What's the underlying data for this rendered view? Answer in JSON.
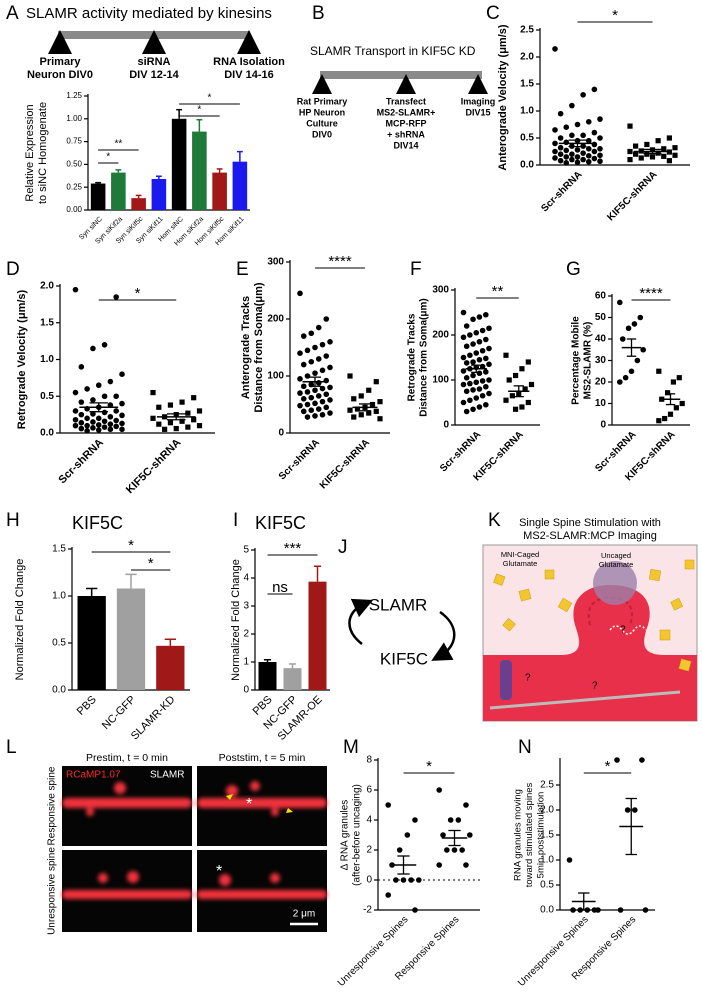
{
  "chart_data": [
    {
      "type": "bar",
      "panel": "A",
      "y_label": [
        "Relative Expression",
        "to siNC Homogenate"
      ],
      "categories": [
        "Syn siNC",
        "Syn siKif2a",
        "Syn siKif5c",
        "Syn siKif11",
        "Hom siNC",
        "Hom siKif2a",
        "Hom siKif5c",
        "Hom siKif11"
      ],
      "values": [
        0.29,
        0.41,
        0.13,
        0.34,
        1.0,
        0.86,
        0.41,
        0.53
      ],
      "errors": [
        0.01,
        0.03,
        0.03,
        0.03,
        0.1,
        0.13,
        0.04,
        0.11
      ],
      "colors": [
        "#000000",
        "#1f7a3a",
        "#a01818",
        "#1a1aee",
        "#000000",
        "#1f7a3a",
        "#a01818",
        "#1a1aee"
      ],
      "ylim": [
        0,
        1.25
      ],
      "yticks": [
        {
          "value": 0,
          "label": "0.00"
        },
        {
          "value": 0.25,
          "label": "0.25"
        },
        {
          "value": 0.5,
          "label": "0.50"
        },
        {
          "value": 0.75,
          "label": "0.75"
        },
        {
          "value": 1,
          "label": "1.00"
        },
        {
          "value": 1.25,
          "label": "1.25"
        }
      ],
      "significance": [
        {
          "label": "*",
          "between": [
            0,
            1
          ]
        },
        {
          "label": "**",
          "between": [
            0,
            2
          ]
        },
        {
          "label": "*",
          "between": [
            4,
            6
          ]
        },
        {
          "label": "*",
          "between": [
            4,
            7
          ]
        }
      ]
    },
    {
      "type": "strip",
      "panel": "C",
      "y_label": [
        "Anterograde Velocity (μm/s)"
      ],
      "categories": [
        "Scr-shRNA",
        "KIF5C-shRNA"
      ],
      "markers": [
        "circle",
        "square"
      ],
      "values": [
        [
          2.15,
          1.4,
          1.3,
          1.1,
          0.95,
          0.85,
          0.8,
          0.75,
          0.7,
          0.65,
          0.6,
          0.55,
          0.55,
          0.5,
          0.5,
          0.45,
          0.45,
          0.42,
          0.4,
          0.38,
          0.35,
          0.35,
          0.32,
          0.3,
          0.3,
          0.28,
          0.27,
          0.25,
          0.25,
          0.22,
          0.2,
          0.2,
          0.18,
          0.17,
          0.15,
          0.15,
          0.13,
          0.12,
          0.1,
          0.1,
          0.08,
          0.07,
          0.06,
          0.05,
          0.04
        ],
        [
          0.72,
          0.5,
          0.45,
          0.38,
          0.35,
          0.32,
          0.3,
          0.28,
          0.26,
          0.25,
          0.24,
          0.22,
          0.2,
          0.2,
          0.18,
          0.16,
          0.15,
          0.13,
          0.1,
          0.08
        ]
      ],
      "means": [
        0.4,
        0.25
      ],
      "sems": [
        0.06,
        0.04
      ],
      "ylim": [
        0,
        2.5
      ],
      "yticks": [
        {
          "value": 0,
          "label": "0.0"
        },
        {
          "value": 0.5,
          "label": "0.5"
        },
        {
          "value": 1,
          "label": "1.0"
        },
        {
          "value": 1.5,
          "label": "1.5"
        },
        {
          "value": 2,
          "label": "2.0"
        },
        {
          "value": 2.5,
          "label": "2.5"
        }
      ],
      "significance": [
        {
          "label": "*",
          "between": [
            0,
            1
          ]
        }
      ]
    },
    {
      "type": "strip",
      "panel": "D",
      "y_label": [
        "Retrograde Velocity (μm/s)"
      ],
      "categories": [
        "Scr-shRNA",
        "KIF5C-shRNA"
      ],
      "markers": [
        "circle",
        "square"
      ],
      "values": [
        [
          1.95,
          1.85,
          1.2,
          1.15,
          0.9,
          0.8,
          0.7,
          0.65,
          0.6,
          0.55,
          0.5,
          0.5,
          0.45,
          0.42,
          0.4,
          0.38,
          0.35,
          0.33,
          0.3,
          0.3,
          0.28,
          0.26,
          0.25,
          0.24,
          0.22,
          0.2,
          0.2,
          0.18,
          0.17,
          0.16,
          0.15,
          0.14,
          0.13,
          0.12,
          0.11,
          0.1,
          0.1,
          0.09,
          0.08,
          0.07,
          0.06,
          0.05,
          0.05,
          0.04,
          0.03
        ],
        [
          0.55,
          0.48,
          0.42,
          0.38,
          0.35,
          0.3,
          0.27,
          0.25,
          0.22,
          0.2,
          0.18,
          0.16,
          0.14,
          0.12,
          0.1,
          0.08,
          0.06,
          0.05
        ]
      ],
      "means": [
        0.35,
        0.22
      ],
      "sems": [
        0.06,
        0.04
      ],
      "ylim": [
        0,
        2
      ],
      "yticks": [
        {
          "value": 0,
          "label": "0.0"
        },
        {
          "value": 0.5,
          "label": "0.5"
        },
        {
          "value": 1,
          "label": "1.0"
        },
        {
          "value": 1.5,
          "label": "1.5"
        },
        {
          "value": 2,
          "label": "2.0"
        }
      ],
      "significance": [
        {
          "label": "*",
          "between": [
            0,
            1
          ]
        }
      ]
    },
    {
      "type": "strip",
      "panel": "E",
      "y_label": [
        "Anterograde Tracks",
        "Distance from Soma(μm)"
      ],
      "categories": [
        "Scr-shRNA",
        "KIF5C-shRNA"
      ],
      "markers": [
        "circle",
        "square"
      ],
      "values": [
        [
          245,
          200,
          185,
          175,
          170,
          160,
          155,
          150,
          145,
          140,
          135,
          130,
          125,
          120,
          115,
          110,
          105,
          100,
          95,
          92,
          88,
          85,
          82,
          80,
          78,
          75,
          72,
          70,
          68,
          65,
          62,
          60,
          58,
          55,
          52,
          50,
          48,
          45,
          42,
          40,
          38,
          35,
          32,
          30,
          28
        ],
        [
          100,
          90,
          75,
          65,
          60,
          55,
          50,
          45,
          42,
          40,
          38,
          35,
          32,
          28,
          25
        ]
      ],
      "means": [
        90,
        45
      ],
      "sems": [
        8,
        6
      ],
      "ylim": [
        0,
        300
      ],
      "yticks": [
        0,
        100,
        200,
        300
      ],
      "significance": [
        {
          "label": "****",
          "between": [
            0,
            1
          ]
        }
      ]
    },
    {
      "type": "strip",
      "panel": "F",
      "y_label": [
        "Retrograde Tracks",
        "Distance from Soma(μm)"
      ],
      "categories": [
        "Scr-shRNA",
        "KIF5C-shRNA"
      ],
      "markers": [
        "circle",
        "square"
      ],
      "values": [
        [
          250,
          245,
          240,
          235,
          220,
          215,
          210,
          205,
          200,
          195,
          190,
          185,
          180,
          175,
          170,
          165,
          160,
          155,
          150,
          148,
          145,
          140,
          138,
          135,
          130,
          128,
          125,
          120,
          118,
          115,
          110,
          105,
          100,
          98,
          95,
          92,
          90,
          85,
          80,
          78,
          75,
          70,
          65,
          60,
          55,
          50,
          45,
          40,
          35,
          30
        ],
        [
          155,
          140,
          125,
          110,
          100,
          90,
          80,
          70,
          65,
          55,
          50,
          40,
          35
        ]
      ],
      "means": [
        125,
        75
      ],
      "sems": [
        8,
        12
      ],
      "ylim": [
        0,
        300
      ],
      "yticks": [
        0,
        100,
        200,
        300
      ],
      "significance": [
        {
          "label": "**",
          "between": [
            0,
            1
          ]
        }
      ]
    },
    {
      "type": "strip",
      "panel": "G",
      "y_label": [
        "Percentage Mobile",
        "MS2-SLAMR (%)"
      ],
      "categories": [
        "Scr-shRNA",
        "KIF5C-shRNA"
      ],
      "markers": [
        "circle",
        "square"
      ],
      "values": [
        [
          57,
          50,
          47,
          45,
          40,
          35,
          30,
          25,
          22,
          20
        ],
        [
          25,
          22,
          20,
          15,
          12,
          10,
          8,
          5,
          3,
          2
        ]
      ],
      "means": [
        36,
        12
      ],
      "sems": [
        4,
        2.5
      ],
      "ylim": [
        0,
        60
      ],
      "yticks": [
        0,
        10,
        20,
        30,
        40,
        50,
        60
      ],
      "significance": [
        {
          "label": "****",
          "between": [
            0,
            1
          ]
        }
      ]
    },
    {
      "type": "bar",
      "panel": "H",
      "title": "KIF5C",
      "y_label": [
        "Normalized Fold Change"
      ],
      "categories": [
        "PBS",
        "NC-GFP",
        "SLAMR-KD"
      ],
      "values": [
        1.0,
        1.08,
        0.47
      ],
      "errors": [
        0.08,
        0.15,
        0.07
      ],
      "colors": [
        "#000000",
        "#a0a0a0",
        "#a01818"
      ],
      "ylim": [
        0,
        1.5
      ],
      "yticks": [
        {
          "value": 0,
          "label": "0.0"
        },
        {
          "value": 0.5,
          "label": "0.5"
        },
        {
          "value": 1,
          "label": "1.0"
        },
        {
          "value": 1.5,
          "label": "1.5"
        }
      ],
      "significance": [
        {
          "label": "*",
          "between": [
            0,
            2
          ]
        },
        {
          "label": "*",
          "between": [
            1,
            2
          ]
        }
      ]
    },
    {
      "type": "bar",
      "panel": "I",
      "title": "KIF5C",
      "y_label": [
        "Normalized Fold Change"
      ],
      "categories": [
        "PBS",
        "NC-GFP",
        "SLAMR-OE"
      ],
      "values": [
        1.0,
        0.78,
        3.87
      ],
      "errors": [
        0.08,
        0.15,
        0.55
      ],
      "colors": [
        "#000000",
        "#a0a0a0",
        "#a01818"
      ],
      "ylim": [
        0,
        5
      ],
      "yticks": [
        0,
        1,
        2,
        3,
        4,
        5
      ],
      "significance": [
        {
          "label": "ns",
          "between": [
            0,
            1
          ]
        },
        {
          "label": "***",
          "between": [
            0,
            2
          ]
        }
      ]
    },
    {
      "type": "strip",
      "panel": "M",
      "y_label": [
        "Δ RNA granules",
        "(after-before uncaging)"
      ],
      "categories": [
        "Unresponsive Spines",
        "Responsive Spines"
      ],
      "markers": [
        "circle",
        "circle"
      ],
      "values": [
        [
          5,
          4,
          3,
          2,
          1,
          0,
          0,
          0,
          0,
          -1,
          -2
        ],
        [
          6,
          5,
          4,
          4,
          3,
          3,
          2,
          2,
          2,
          1,
          1
        ]
      ],
      "means": [
        1,
        2.8
      ],
      "sems": [
        0.6,
        0.5
      ],
      "ylim": [
        -2,
        8
      ],
      "yticks": [
        -2,
        0,
        2,
        4,
        6,
        8
      ],
      "zero_line": true,
      "significance": [
        {
          "label": "*",
          "between": [
            0,
            1
          ]
        }
      ]
    },
    {
      "type": "strip",
      "panel": "N",
      "y_label": [
        "RNA granules moving",
        "toward stimulated spines",
        "5min poststimulation"
      ],
      "categories": [
        "Unresponsive Spines",
        "Responsive Spines"
      ],
      "markers": [
        "circle",
        "circle"
      ],
      "values": [
        [
          1,
          0,
          0,
          0,
          0,
          0
        ],
        [
          3,
          3,
          2,
          2,
          0,
          0
        ]
      ],
      "means": [
        0.17,
        1.67
      ],
      "sems": [
        0.17,
        0.56
      ],
      "ylim": [
        0,
        3
      ],
      "yticks": [
        {
          "value": 0,
          "label": "0.0"
        },
        {
          "value": 0.5,
          "label": "0.5"
        },
        {
          "value": 1,
          "label": "1.0"
        },
        {
          "value": 1.5,
          "label": "1.5"
        },
        {
          "value": 2,
          "label": "2.0"
        },
        {
          "value": 2.5,
          "label": "2.5"
        }
      ],
      "significance": [
        {
          "label": "*",
          "between": [
            0,
            1
          ]
        }
      ]
    }
  ],
  "diagrams": {
    "a": {
      "title": "SLAMR activity mediated by kinesins",
      "steps": [
        [
          "Primary",
          "Neuron DIV0"
        ],
        [
          "siRNA",
          "DIV 12-14"
        ],
        [
          "RNA Isolation",
          "DIV 14-16"
        ]
      ]
    },
    "b": {
      "panel": "B",
      "title": "SLAMR Transport in KIF5C KD",
      "steps": [
        [
          "Rat Primary",
          "HP Neuron",
          "Culture",
          "DIV0"
        ],
        [
          "Transfect",
          "MS2-SLAMR+",
          "MCP-RFP",
          "+ shRNA",
          "DIV14"
        ],
        [
          "Imaging",
          "DIV15"
        ]
      ]
    },
    "j": {
      "panel": "J",
      "top": "SLAMR",
      "bottom": "KIF5C"
    },
    "k": {
      "panel": "K",
      "title": [
        "Single Spine Stimulation with",
        "MS2-SLAMR:MCP Imaging"
      ],
      "caged": [
        "MNI-Caged",
        "Glutamate"
      ],
      "uncaged": [
        "Uncaged",
        "Glutamate"
      ],
      "questions": [
        "?",
        "?",
        "?"
      ]
    },
    "l": {
      "panel": "L",
      "prestim": "Prestim, t = 0 min",
      "poststim": "Poststim, t = 5 min",
      "channel_red": "RCaMP1.07",
      "channel_white": "SLAMR",
      "row_top": "Responsive spine",
      "row_bottom": "Unresponsive spine",
      "stars": [
        "*",
        "*"
      ],
      "scale": "2 μm"
    }
  }
}
